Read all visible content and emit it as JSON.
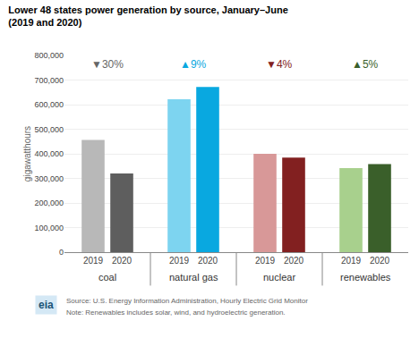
{
  "chart_data": {
    "type": "bar",
    "title": "Lower 48 states power generation by source, January–June",
    "subtitle": "(2019 and 2020)",
    "ylabel": "gigawatthours",
    "categories": [
      "coal",
      "natural gas",
      "nuclear",
      "renewables"
    ],
    "series": [
      {
        "name": "2019",
        "values": [
          456000,
          622000,
          400000,
          342000
        ],
        "colors": [
          "#b8b8b8",
          "#7dd4f0",
          "#d89898",
          "#a8d08d"
        ]
      },
      {
        "name": "2020",
        "values": [
          320000,
          672000,
          385000,
          358000
        ],
        "colors": [
          "#5e5e5e",
          "#09a8e0",
          "#822020",
          "#3a5f2a"
        ]
      }
    ],
    "annotations": [
      {
        "category": "coal",
        "text": "▼30%",
        "color": "#666666",
        "y": 730000
      },
      {
        "category": "natural gas",
        "text": "▲9%",
        "color": "#09a8e0",
        "y": 730000
      },
      {
        "category": "nuclear",
        "text": "▼4%",
        "color": "#822020",
        "y": 730000
      },
      {
        "category": "renewables",
        "text": "▲5%",
        "color": "#3a5f2a",
        "y": 730000
      }
    ],
    "ylim": [
      0,
      800000
    ],
    "yticks": [
      0,
      {
        "value": 100000,
        "label": "100,000"
      },
      {
        "value": 200000,
        "label": "200,000"
      },
      {
        "value": 300000,
        "label": "300,000"
      },
      {
        "value": 400000,
        "label": "400,000"
      },
      {
        "value": 500000,
        "label": "500,000"
      },
      {
        "value": 600000,
        "label": "600,000"
      },
      {
        "value": 700000,
        "label": "700,000"
      },
      {
        "value": 800000,
        "label": "800,000"
      }
    ],
    "grid": true,
    "footnotes": [
      "Source: U.S. Energy Information Administration, Hourly Electric Grid Monitor",
      "Note: Renewables includes solar, wind, and hydroelectric generation."
    ],
    "logo": "eia"
  }
}
